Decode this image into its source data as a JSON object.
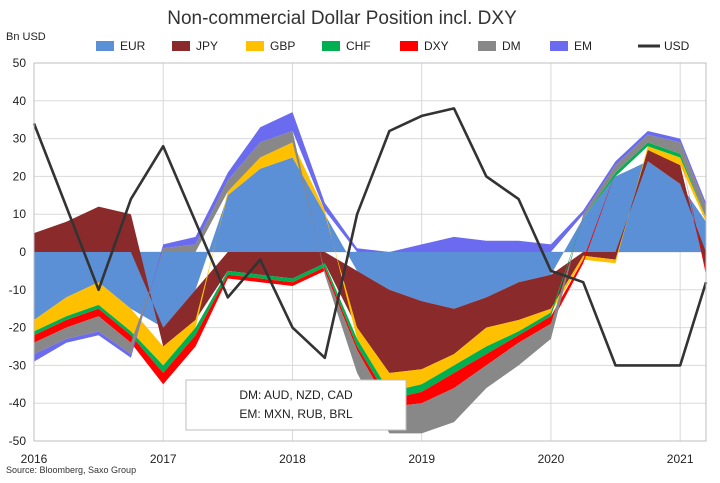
{
  "chart_data": {
    "type": "area",
    "title": "Non-commercial Dollar Position incl. DXY",
    "ylabel": "Bn USD",
    "ylim": [
      -50,
      50
    ],
    "yticks": [
      50,
      40,
      30,
      20,
      10,
      0,
      -10,
      -20,
      -30,
      -40,
      -50
    ],
    "xlim": [
      2016.0,
      2021.2
    ],
    "xticks": [
      {
        "value": 2016,
        "label": "2016"
      },
      {
        "value": 2017,
        "label": "2017"
      },
      {
        "value": 2018,
        "label": "2018"
      },
      {
        "value": 2019,
        "label": "2019"
      },
      {
        "value": 2020,
        "label": "2020"
      },
      {
        "value": 2021,
        "label": "2021"
      }
    ],
    "grid": true,
    "legend_position": "top",
    "note_lines": [
      "DM: AUD, NZD, CAD",
      "EM: MXN, RUB, BRL"
    ],
    "source": "Source: Bloomberg, Saxo Group",
    "x": [
      2016.0,
      2016.25,
      2016.5,
      2016.75,
      2017.0,
      2017.25,
      2017.5,
      2017.75,
      2018.0,
      2018.25,
      2018.5,
      2018.75,
      2019.0,
      2019.25,
      2019.5,
      2019.75,
      2020.0,
      2020.25,
      2020.5,
      2020.75,
      2021.0,
      2021.2
    ],
    "series": [
      {
        "name": "EUR",
        "kind": "area",
        "color": "#5b8fd6",
        "values": [
          -18,
          -12,
          -8,
          -15,
          -20,
          -10,
          15,
          22,
          25,
          10,
          -5,
          -10,
          -13,
          -15,
          -12,
          -8,
          -6,
          9,
          20,
          24,
          18,
          8
        ]
      },
      {
        "name": "JPY",
        "kind": "area",
        "color": "#8b2a2a",
        "values": [
          5,
          8,
          12,
          10,
          -5,
          -8,
          -5,
          -6,
          -7,
          -3,
          -15,
          -22,
          -18,
          -12,
          -8,
          -10,
          -9,
          -1,
          -2,
          3,
          5,
          -5
        ]
      },
      {
        "name": "GBP",
        "kind": "area",
        "color": "#ffc000",
        "values": [
          -3,
          -5,
          -6,
          -6,
          -5,
          -2,
          1,
          3,
          4,
          1,
          -3,
          -5,
          -4,
          -3,
          -5,
          -3,
          -1,
          -1,
          -1,
          1,
          2,
          1
        ]
      },
      {
        "name": "CHF",
        "kind": "area",
        "color": "#00b050",
        "values": [
          -1,
          -1,
          -1,
          -1,
          -2,
          -2,
          -1,
          -1,
          -1,
          -1,
          -2,
          -2,
          -2,
          -2,
          -2,
          -1,
          -1,
          0,
          1,
          1,
          1,
          0
        ]
      },
      {
        "name": "DXY",
        "kind": "area",
        "color": "#ff0000",
        "values": [
          -2,
          -2,
          -2,
          -2,
          -3,
          -3,
          -1,
          -1,
          -1,
          -1,
          -1,
          -2,
          -3,
          -4,
          -3,
          -2,
          -2,
          -1,
          0,
          0,
          0,
          -1
        ]
      },
      {
        "name": "DM",
        "kind": "area",
        "color": "#888888",
        "values": [
          -3,
          -3,
          -4,
          -3,
          1,
          2,
          3,
          4,
          3,
          -1,
          -6,
          -7,
          -8,
          -9,
          -6,
          -6,
          -4,
          1,
          2,
          2,
          3,
          3
        ]
      },
      {
        "name": "EM",
        "kind": "area",
        "color": "#6b6bf0",
        "values": [
          -2,
          -1,
          -1,
          -1,
          1,
          2,
          2,
          4,
          5,
          2,
          1,
          0,
          2,
          4,
          3,
          3,
          2,
          1,
          1,
          1,
          1,
          1
        ]
      },
      {
        "name": "USD",
        "kind": "line",
        "color": "#333333",
        "values": [
          34,
          12,
          -10,
          14,
          28,
          8,
          -12,
          -2,
          -20,
          -28,
          10,
          32,
          36,
          38,
          20,
          14,
          -5,
          -8,
          -30,
          -30,
          -30,
          -8
        ]
      }
    ]
  }
}
